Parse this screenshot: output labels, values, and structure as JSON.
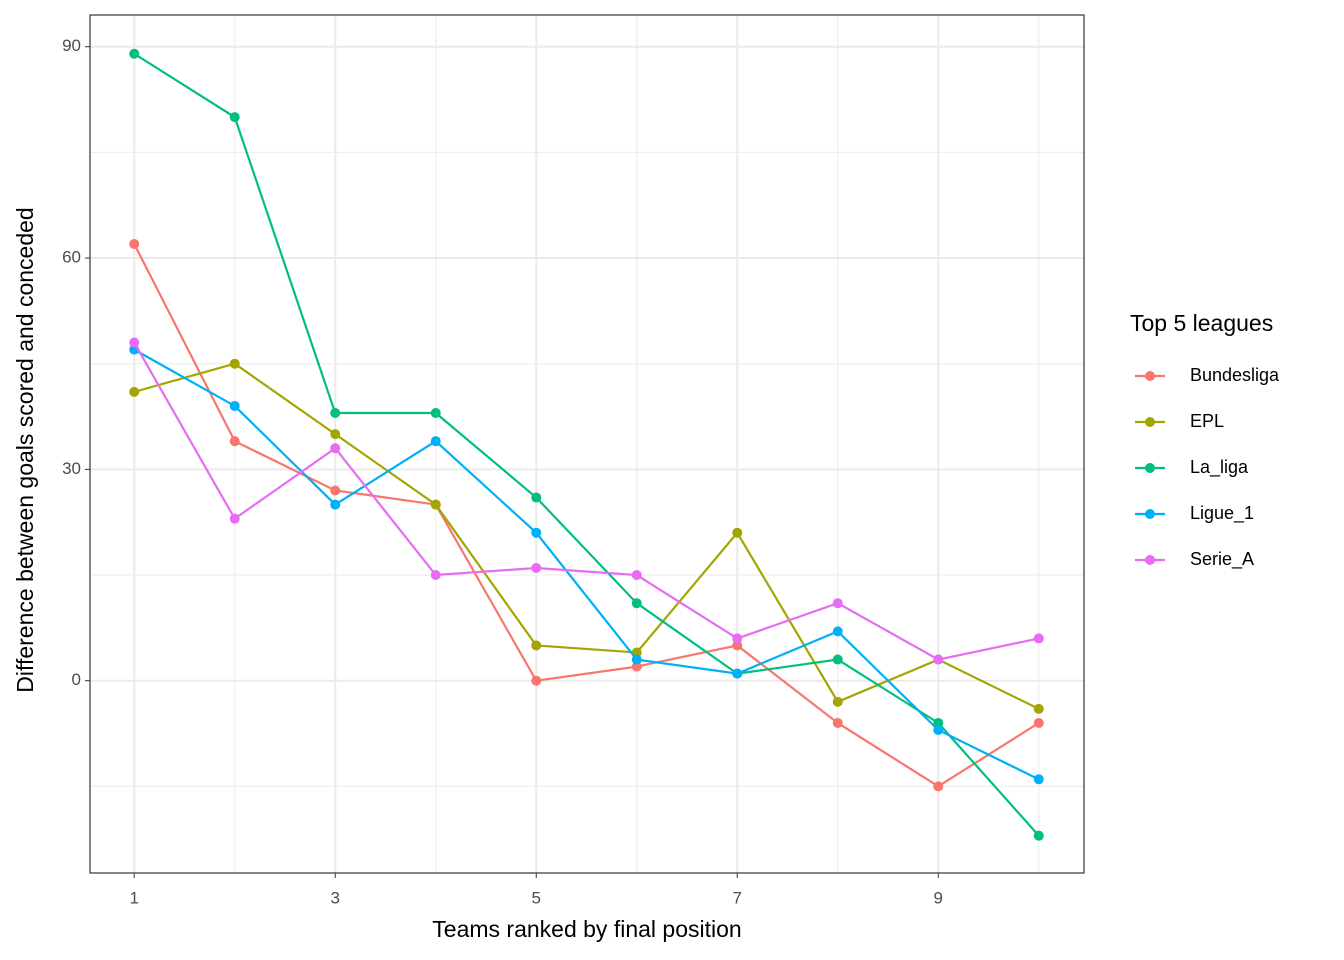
{
  "chart_data": {
    "type": "line",
    "x_label": "Teams ranked by final position",
    "y_label": "Difference between goals scored and conceded",
    "legend_title": "Top 5 leagues",
    "x": [
      1,
      2,
      3,
      4,
      5,
      6,
      7,
      8,
      9,
      10
    ],
    "xlim": [
      0.56,
      10.45
    ],
    "xticks": [
      1,
      3,
      5,
      7,
      9
    ],
    "ylim": [
      -27.3,
      94.5
    ],
    "yticks": [
      0,
      30,
      60,
      90
    ],
    "grid": true,
    "legend_position": "right",
    "series": [
      {
        "name": "Bundesliga",
        "color": "#F8766D",
        "values": [
          62,
          34,
          27,
          25,
          0,
          2,
          5,
          -6,
          -15,
          -6
        ]
      },
      {
        "name": "EPL",
        "color": "#A3A500",
        "values": [
          41,
          45,
          35,
          25,
          5,
          4,
          21,
          -3,
          3,
          -4
        ]
      },
      {
        "name": "La_liga",
        "color": "#00BF7D",
        "values": [
          89,
          80,
          38,
          38,
          26,
          11,
          1,
          3,
          -6,
          -22
        ]
      },
      {
        "name": "Ligue_1",
        "color": "#00B0F6",
        "values": [
          47,
          39,
          25,
          34,
          21,
          3,
          1,
          7,
          -7,
          -14
        ]
      },
      {
        "name": "Serie_A",
        "color": "#E76BF3",
        "values": [
          48,
          23,
          33,
          15,
          16,
          15,
          6,
          11,
          3,
          6
        ]
      }
    ]
  }
}
